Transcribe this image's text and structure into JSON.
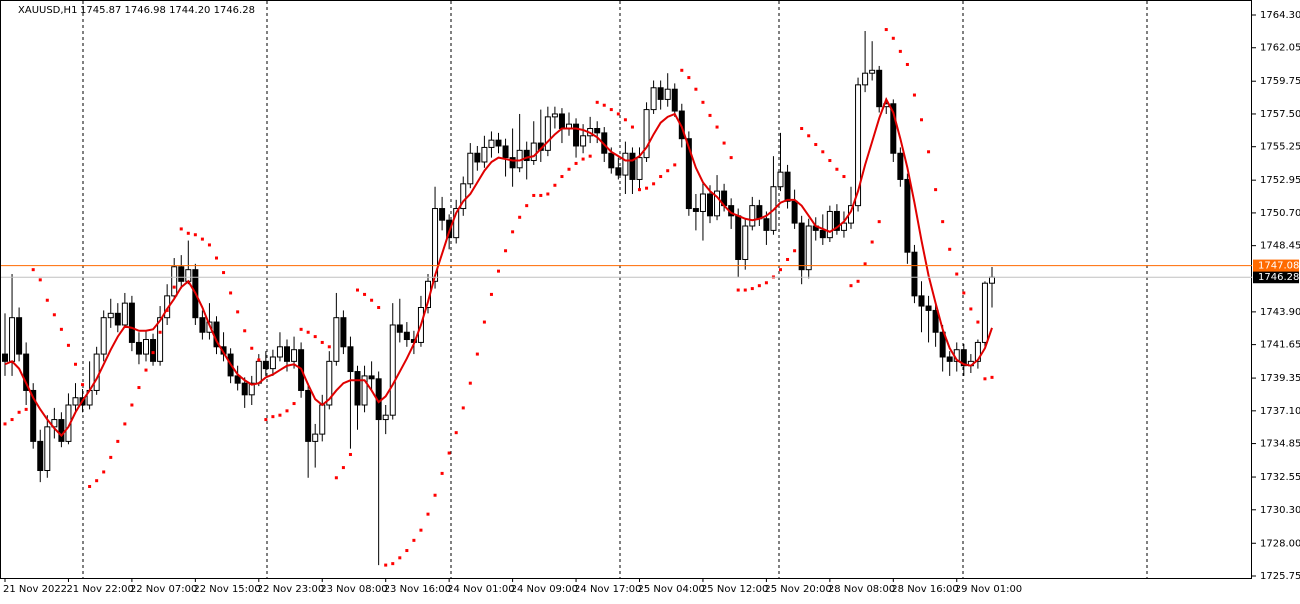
{
  "chart_data": {
    "type": "candlestick",
    "title": "XAUUSD,H1",
    "readout": "1745.87 1746.98 1744.20 1746.28",
    "bull_color": "#ffffff",
    "bear_color": "#000000",
    "categories": [
      "21 Nov 2022",
      null,
      null,
      null,
      null,
      null,
      null,
      null,
      null,
      "21 Nov 22:00",
      null,
      null,
      null,
      null,
      null,
      null,
      null,
      null,
      "22 Nov 07:00",
      null,
      null,
      null,
      null,
      null,
      null,
      null,
      null,
      "22 Nov 15:00",
      null,
      null,
      null,
      null,
      null,
      null,
      null,
      null,
      "22 Nov 23:00",
      null,
      null,
      null,
      null,
      null,
      null,
      null,
      null,
      "23 Nov 08:00",
      null,
      null,
      null,
      null,
      null,
      null,
      null,
      null,
      "23 Nov 16:00",
      null,
      null,
      null,
      null,
      null,
      null,
      null,
      null,
      "24 Nov 01:00",
      null,
      null,
      null,
      null,
      null,
      null,
      null,
      null,
      "24 Nov 09:00",
      null,
      null,
      null,
      null,
      null,
      null,
      null,
      null,
      "24 Nov 17:00",
      null,
      null,
      null,
      null,
      null,
      null,
      null,
      null,
      "25 Nov 04:00",
      null,
      null,
      null,
      null,
      null,
      null,
      null,
      null,
      "25 Nov 12:00",
      null,
      null,
      null,
      null,
      null,
      null,
      null,
      null,
      "25 Nov 20:00",
      null,
      null,
      null,
      null,
      null,
      null,
      null,
      null,
      "28 Nov 08:00",
      null,
      null,
      null,
      null,
      null,
      null,
      null,
      null,
      "28 Nov 16:00",
      null,
      null,
      null,
      null,
      null,
      null,
      null,
      null,
      "29 Nov 01:00",
      null,
      null,
      null,
      null,
      null
    ],
    "ohlc": [
      [
        1741.0,
        1743.8,
        1739.5,
        1740.5
      ],
      [
        1740.5,
        1746.5,
        1739.5,
        1743.5
      ],
      [
        1743.5,
        1744.2,
        1740.5,
        1741
      ],
      [
        1741,
        1741.8,
        1737.5,
        1738.5
      ],
      [
        1738.5,
        1739,
        1734.5,
        1735
      ],
      [
        1735,
        1735.8,
        1732.2,
        1733
      ],
      [
        1733,
        1736.8,
        1732.5,
        1736
      ],
      [
        1736,
        1737.3,
        1735.2,
        1736.5
      ],
      [
        1736.5,
        1737,
        1734.6,
        1735
      ],
      [
        1735,
        1738.3,
        1734.8,
        1737.5
      ],
      [
        1737.5,
        1739,
        1737,
        1738
      ],
      [
        1738,
        1738.6,
        1737,
        1737.5
      ],
      [
        1737.5,
        1740.5,
        1737.2,
        1738.5
      ],
      [
        1738.5,
        1741.5,
        1738.2,
        1741
      ],
      [
        1741,
        1744,
        1740.5,
        1743.5
      ],
      [
        1743.5,
        1744.8,
        1742.8,
        1743.8
      ],
      [
        1743.8,
        1744.5,
        1742.5,
        1743
      ],
      [
        1743,
        1745.2,
        1742.8,
        1744.5
      ],
      [
        1744.5,
        1745,
        1741.2,
        1741.8
      ],
      [
        1741.8,
        1742.5,
        1740.3,
        1741
      ],
      [
        1741,
        1742.6,
        1740.5,
        1742
      ],
      [
        1742,
        1742.4,
        1740.2,
        1740.5
      ],
      [
        1740.5,
        1744.3,
        1740.2,
        1743.5
      ],
      [
        1743.5,
        1745.8,
        1743,
        1745
      ],
      [
        1745,
        1747.6,
        1744.8,
        1747
      ],
      [
        1747,
        1747.8,
        1745.5,
        1746
      ],
      [
        1746,
        1748.8,
        1745.8,
        1746.8
      ],
      [
        1746.8,
        1747.2,
        1743,
        1743.5
      ],
      [
        1743.5,
        1744,
        1742,
        1742.5
      ],
      [
        1742.5,
        1744.5,
        1742,
        1743.2
      ],
      [
        1743.2,
        1743.6,
        1741,
        1741.5
      ],
      [
        1741.5,
        1742.5,
        1740.5,
        1741
      ],
      [
        1741,
        1741.4,
        1739,
        1739.5
      ],
      [
        1739.5,
        1740.2,
        1738.5,
        1739
      ],
      [
        1739,
        1739.4,
        1737.3,
        1738.2
      ],
      [
        1738.2,
        1739.5,
        1737.5,
        1739
      ],
      [
        1739,
        1741,
        1738.8,
        1740.5
      ],
      [
        1740.5,
        1741.2,
        1739.5,
        1740
      ],
      [
        1740,
        1741.3,
        1739.5,
        1740.8
      ],
      [
        1740.8,
        1742.5,
        1740.5,
        1741.5
      ],
      [
        1741.5,
        1742,
        1739.8,
        1740.5
      ],
      [
        1740.5,
        1742.2,
        1740,
        1741.3
      ],
      [
        1741.3,
        1741.8,
        1738,
        1738.5
      ],
      [
        1738.5,
        1739,
        1732.5,
        1735
      ],
      [
        1735,
        1736.2,
        1733.2,
        1735.5
      ],
      [
        1735.5,
        1738.2,
        1735,
        1737.5
      ],
      [
        1737.5,
        1741.2,
        1737.2,
        1740.5
      ],
      [
        1740.5,
        1745.2,
        1740.2,
        1743.5
      ],
      [
        1743.5,
        1744,
        1741,
        1741.5
      ],
      [
        1741.5,
        1742.2,
        1734.5,
        1739.8
      ],
      [
        1739.8,
        1740.2,
        1735.8,
        1737.5
      ],
      [
        1737.5,
        1740.2,
        1737,
        1739.5
      ],
      [
        1739.5,
        1740.5,
        1738.5,
        1739.3
      ],
      [
        1739.3,
        1739.8,
        1726.5,
        1736.5
      ],
      [
        1736.5,
        1737.5,
        1735.5,
        1736.8
      ],
      [
        1736.8,
        1744.5,
        1736.5,
        1743
      ],
      [
        1743,
        1744.8,
        1741.8,
        1742.5
      ],
      [
        1742.5,
        1743.2,
        1741.5,
        1742
      ],
      [
        1742,
        1742.6,
        1741,
        1741.8
      ],
      [
        1741.8,
        1745,
        1741.5,
        1744.2
      ],
      [
        1744.2,
        1746.5,
        1743.8,
        1746
      ],
      [
        1746,
        1752.5,
        1745.5,
        1751
      ],
      [
        1751,
        1751.8,
        1749.5,
        1750.2
      ],
      [
        1750.2,
        1750.6,
        1748.2,
        1749
      ],
      [
        1749,
        1751.6,
        1748.6,
        1751
      ],
      [
        1751,
        1753.2,
        1750.5,
        1752.7
      ],
      [
        1752.7,
        1755.5,
        1752.4,
        1754.8
      ],
      [
        1754.8,
        1755.3,
        1753.6,
        1754.2
      ],
      [
        1754.2,
        1756,
        1753.8,
        1755.2
      ],
      [
        1755.2,
        1756.3,
        1754.5,
        1755.7
      ],
      [
        1755.7,
        1756.2,
        1754.8,
        1755.3
      ],
      [
        1755.3,
        1755.8,
        1753.2,
        1754.5
      ],
      [
        1754.5,
        1756.5,
        1752.5,
        1753.8
      ],
      [
        1753.8,
        1757.5,
        1753.5,
        1755
      ],
      [
        1755,
        1755.6,
        1753,
        1754.3
      ],
      [
        1754.3,
        1757,
        1754,
        1755.5
      ],
      [
        1755.5,
        1757.8,
        1754.2,
        1755
      ],
      [
        1755,
        1758,
        1754.6,
        1757.3
      ],
      [
        1757.3,
        1758,
        1756.5,
        1757.5
      ],
      [
        1757.5,
        1757.9,
        1755.5,
        1756.5
      ],
      [
        1756.5,
        1757.6,
        1756,
        1756.8
      ],
      [
        1756.8,
        1757.2,
        1754.5,
        1755.3
      ],
      [
        1755.3,
        1756.8,
        1754.8,
        1756
      ],
      [
        1756,
        1757.3,
        1755.5,
        1756.5
      ],
      [
        1756.5,
        1757,
        1755.5,
        1756.2
      ],
      [
        1756.2,
        1756.6,
        1754.2,
        1754.8
      ],
      [
        1754.8,
        1755.2,
        1753.4,
        1753.8
      ],
      [
        1753.8,
        1754.5,
        1753,
        1753.3
      ],
      [
        1753.3,
        1755.6,
        1752,
        1754.8
      ],
      [
        1754.8,
        1755.2,
        1752,
        1753
      ],
      [
        1753,
        1755.2,
        1752.2,
        1754.5
      ],
      [
        1754.5,
        1758.3,
        1754.2,
        1757.8
      ],
      [
        1757.8,
        1759.8,
        1757.5,
        1759.3
      ],
      [
        1759.3,
        1759.8,
        1757.8,
        1758.5
      ],
      [
        1758.5,
        1760.3,
        1758,
        1759.2
      ],
      [
        1759.2,
        1759.6,
        1757.3,
        1757.7
      ],
      [
        1757.7,
        1758.2,
        1755.2,
        1755.8
      ],
      [
        1755.8,
        1756.3,
        1750.5,
        1751
      ],
      [
        1751,
        1752,
        1749.5,
        1750.8
      ],
      [
        1750.8,
        1752.8,
        1748.8,
        1752
      ],
      [
        1752,
        1752.6,
        1750,
        1750.5
      ],
      [
        1750.5,
        1753.3,
        1750.2,
        1752.2
      ],
      [
        1752.2,
        1752.7,
        1750.8,
        1751.2
      ],
      [
        1751.2,
        1751.7,
        1749.6,
        1750.5
      ],
      [
        1750.5,
        1751,
        1746.3,
        1747.5
      ],
      [
        1747.5,
        1750.3,
        1746.8,
        1749.8
      ],
      [
        1749.8,
        1751.8,
        1749.5,
        1751.2
      ],
      [
        1751.2,
        1751.6,
        1749.8,
        1750.3
      ],
      [
        1750.3,
        1750.8,
        1748.5,
        1749.5
      ],
      [
        1749.5,
        1754.6,
        1749.2,
        1752.5
      ],
      [
        1752.5,
        1756.2,
        1752.2,
        1753.5
      ],
      [
        1753.5,
        1754,
        1751,
        1751.5
      ],
      [
        1751.5,
        1752.3,
        1749.6,
        1750
      ],
      [
        1750,
        1750.5,
        1745.8,
        1746.8
      ],
      [
        1746.8,
        1750.3,
        1746.2,
        1749.8
      ],
      [
        1749.8,
        1750.4,
        1748.8,
        1749.5
      ],
      [
        1749.5,
        1750.6,
        1748.5,
        1749
      ],
      [
        1749,
        1751.2,
        1748.7,
        1750.8
      ],
      [
        1750.8,
        1751.3,
        1749.2,
        1749.5
      ],
      [
        1749.5,
        1750.8,
        1749,
        1750
      ],
      [
        1750,
        1752.5,
        1749.6,
        1751.2
      ],
      [
        1751.2,
        1760,
        1750.8,
        1759.5
      ],
      [
        1759.5,
        1763.2,
        1759,
        1760.3
      ],
      [
        1760.3,
        1762.5,
        1759.8,
        1760.5
      ],
      [
        1760.5,
        1760.8,
        1757.6,
        1758
      ],
      [
        1758,
        1758.6,
        1757.5,
        1758.2
      ],
      [
        1758.2,
        1758.5,
        1754.2,
        1754.8
      ],
      [
        1754.8,
        1755.2,
        1752.5,
        1753
      ],
      [
        1753,
        1753.4,
        1747.2,
        1748
      ],
      [
        1748,
        1748.5,
        1744.5,
        1745
      ],
      [
        1745,
        1746,
        1742.5,
        1744.3
      ],
      [
        1744.3,
        1745,
        1741.8,
        1744
      ],
      [
        1744,
        1744.5,
        1741.5,
        1742.5
      ],
      [
        1742.5,
        1743,
        1739.8,
        1740.8
      ],
      [
        1740.8,
        1741.2,
        1739.5,
        1740.5
      ],
      [
        1740.5,
        1741.8,
        1739.8,
        1741.3
      ],
      [
        1741.3,
        1741.7,
        1739.5,
        1740.2
      ],
      [
        1740.2,
        1741,
        1739.7,
        1740.5
      ],
      [
        1740.5,
        1742,
        1740,
        1741.8
      ],
      [
        1741.8,
        1746,
        1741.5,
        1745.87
      ],
      [
        1745.87,
        1746.98,
        1744.2,
        1746.28
      ]
    ],
    "ma": {
      "color": "#e00000",
      "values": [
        1740.3,
        1740.5,
        1740.0,
        1739.0,
        1738.0,
        1737.2,
        1736.5,
        1735.9,
        1735.4,
        1736.0,
        1737.0,
        1737.8,
        1738.5,
        1739.3,
        1740.3,
        1741.3,
        1742.2,
        1742.9,
        1742.8,
        1742.6,
        1742.6,
        1742.7,
        1743.3,
        1744.1,
        1744.8,
        1745.6,
        1746.0,
        1745.2,
        1744.2,
        1743.0,
        1741.9,
        1741.1,
        1740.3,
        1739.6,
        1739.2,
        1738.9,
        1739.0,
        1739.4,
        1739.6,
        1739.9,
        1740.2,
        1740.3,
        1740.0,
        1738.9,
        1737.9,
        1737.5,
        1737.9,
        1738.5,
        1739.0,
        1739.2,
        1739.2,
        1739.2,
        1738.5,
        1737.7,
        1738.1,
        1738.9,
        1739.8,
        1740.7,
        1741.7,
        1743.0,
        1744.6,
        1746.4,
        1747.9,
        1749.4,
        1750.7,
        1751.5,
        1752.0,
        1752.8,
        1753.6,
        1754.2,
        1754.5,
        1754.4,
        1754.3,
        1754.3,
        1754.5,
        1754.6,
        1755.1,
        1755.6,
        1756.1,
        1756.5,
        1756.5,
        1756.5,
        1756.4,
        1756.2,
        1755.9,
        1755.4,
        1754.9,
        1754.6,
        1754.3,
        1754.3,
        1754.6,
        1755.2,
        1756.1,
        1756.9,
        1757.3,
        1757.5,
        1756.6,
        1755.2,
        1753.8,
        1752.8,
        1752.2,
        1751.8,
        1751.2,
        1750.7,
        1750.5,
        1750.3,
        1750.2,
        1750.3,
        1750.5,
        1750.9,
        1751.4,
        1751.6,
        1751.6,
        1751.2,
        1750.5,
        1749.8,
        1749.6,
        1749.4,
        1749.7,
        1750.1,
        1750.8,
        1752.2,
        1754.0,
        1755.6,
        1757.2,
        1758.5,
        1757.6,
        1755.8,
        1753.8,
        1751.4,
        1748.8,
        1746.4,
        1744.5,
        1742.7,
        1741.4,
        1740.6,
        1740.3,
        1740.2,
        1740.6,
        1741.4,
        1742.8
      ]
    },
    "sar": {
      "color": "#ff0000",
      "values": [
        1736.2,
        1736.5,
        1737,
        1737.2,
        1746.8,
        1746.1,
        1744.7,
        1743.7,
        1742.7,
        1741.6,
        1740.3,
        1738.9,
        1731.9,
        1732.3,
        1732.9,
        1733.9,
        1735,
        1736.2,
        1737.5,
        1738.7,
        1739.9,
        1741.1,
        1742.5,
        1744,
        1745.6,
        1749.6,
        1749.3,
        1749.2,
        1748.9,
        1748.5,
        1747.6,
        1746.6,
        1745.2,
        1743.9,
        1742.6,
        1741.4,
        1740.6,
        1736.5,
        1736.7,
        1736.8,
        1737.1,
        1737.6,
        1742.7,
        1742.5,
        1742.2,
        1741.8,
        1741.5,
        1732.5,
        1733.2,
        1734.1,
        1745.4,
        1745.1,
        1744.7,
        1744.2,
        1726.5,
        1726.6,
        1727,
        1727.5,
        1728.2,
        1728.9,
        1730,
        1731.3,
        1732.8,
        1734.2,
        1735.6,
        1737.3,
        1739,
        1741,
        1743.2,
        1745.1,
        1746.7,
        1748.1,
        1749.4,
        1750.4,
        1751.2,
        1751.9,
        1751.9,
        1752,
        1752.6,
        1753.2,
        1753.7,
        1754.1,
        1754.4,
        1754.6,
        1758.3,
        1758.1,
        1757.8,
        1757.5,
        1757.1,
        1756.6,
        1752.3,
        1752.4,
        1752.7,
        1753.2,
        1753.6,
        1754,
        1760.5,
        1760,
        1759.2,
        1758.3,
        1757.4,
        1756.6,
        1755.5,
        1754.5,
        1745.4,
        1745.4,
        1745.5,
        1745.7,
        1745.9,
        1746.3,
        1746.8,
        1747.5,
        1748.1,
        1756.5,
        1756,
        1755.4,
        1754.9,
        1754.3,
        1753.7,
        1753.2,
        1745.7,
        1746,
        1747.2,
        1748.7,
        1750.1,
        1763.3,
        1762.7,
        1761.8,
        1760.9,
        1758.8,
        1757.1,
        1754.9,
        1752.3,
        1750.1,
        1748.2,
        1746.5,
        1745.2,
        1744.1,
        1743.2,
        1739.3,
        1739.4
      ]
    },
    "ask_line": {
      "value": 1747.08,
      "color": "#ff6a00"
    },
    "bid_line": {
      "value": 1746.28,
      "color": "#000000"
    },
    "ylim": [
      1725.75,
      1764.3
    ],
    "yticks": [
      {
        "value": 1764.3,
        "label": "1764.30"
      },
      1762.05,
      1759.75,
      {
        "value": 1757.5,
        "label": "1757.50"
      },
      1755.25,
      1752.95,
      {
        "value": 1750.7,
        "label": "1750.70"
      },
      1748.45,
      {
        "value": 1743.9,
        "label": "1743.90"
      },
      1741.65,
      1739.35,
      {
        "value": 1737.1,
        "label": "1737.10"
      },
      1734.85,
      1732.55,
      {
        "value": 1730.3,
        "label": "1730.30"
      },
      {
        "value": 1728,
        "label": "1728.00"
      },
      1725.75
    ],
    "grid": false
  }
}
